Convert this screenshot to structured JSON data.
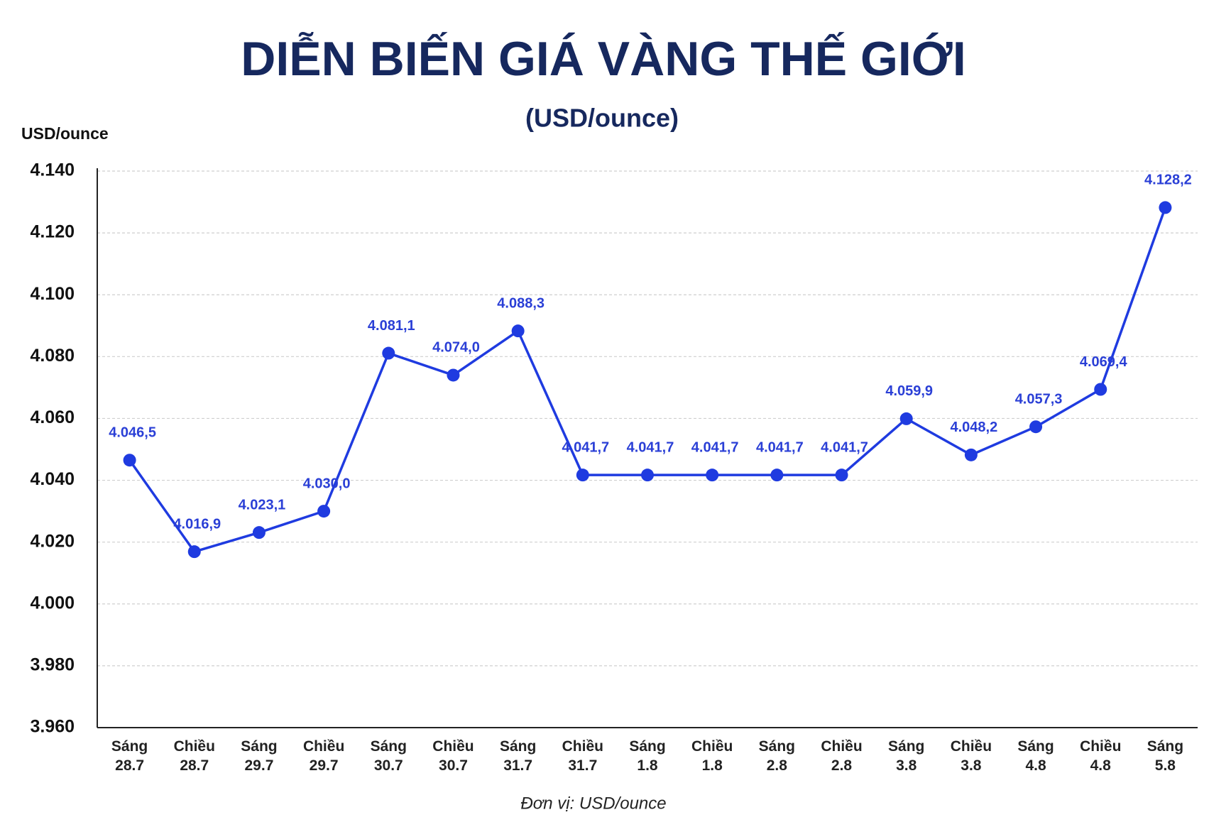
{
  "chart_data": {
    "type": "line",
    "title": "DIỄN BIẾN GIÁ VÀNG THẾ GIỚI",
    "subtitle": "(USD/ounce)",
    "y_label": "USD/ounce",
    "footnote": "Đơn vị: USD/ounce",
    "categories": [
      "Sáng 28.7",
      "Chiều 28.7",
      "Sáng 29.7",
      "Chiều 29.7",
      "Sáng 30.7",
      "Chiều 30.7",
      "Sáng 31.7",
      "Chiều 31.7",
      "Sáng 1.8",
      "Chiều 1.8",
      "Sáng 2.8",
      "Chiều 2.8",
      "Sáng 3.8",
      "Chiều 3.8",
      "Sáng 4.8",
      "Chiều 4.8",
      "Sáng 5.8"
    ],
    "series": [
      {
        "name": "Giá vàng",
        "color": "#1f3be0",
        "values": [
          4046.5,
          4016.9,
          4023.1,
          4030.0,
          4081.1,
          4074.0,
          4088.3,
          4041.7,
          4041.7,
          4041.7,
          4041.7,
          4041.7,
          4059.9,
          4048.2,
          4057.3,
          4069.4,
          4128.2
        ],
        "value_labels": [
          "4.046,5",
          "4.016,9",
          "4.023,1",
          "4.030,0",
          "4.081,1",
          "4.074,0",
          "4.088,3",
          "4.041,7",
          "4.041,7",
          "4.041,7",
          "4.041,7",
          "4.041,7",
          "4.059,9",
          "4.048,2",
          "4.057,3",
          "4.069,4",
          "4.128,2"
        ]
      }
    ],
    "ylim": [
      3960,
      4140
    ],
    "yticks": [
      {
        "value": 3960,
        "label": "3.960"
      },
      {
        "value": 3980,
        "label": "3.980"
      },
      {
        "value": 4000,
        "label": "4.000"
      },
      {
        "value": 4020,
        "label": "4.020"
      },
      {
        "value": 4040,
        "label": "4.040"
      },
      {
        "value": 4060,
        "label": "4.060"
      },
      {
        "value": 4080,
        "label": "4.080"
      },
      {
        "value": 4100,
        "label": "4.100"
      },
      {
        "value": 4120,
        "label": "4.120"
      },
      {
        "value": 4140,
        "label": "4.140"
      }
    ],
    "grid": true
  }
}
